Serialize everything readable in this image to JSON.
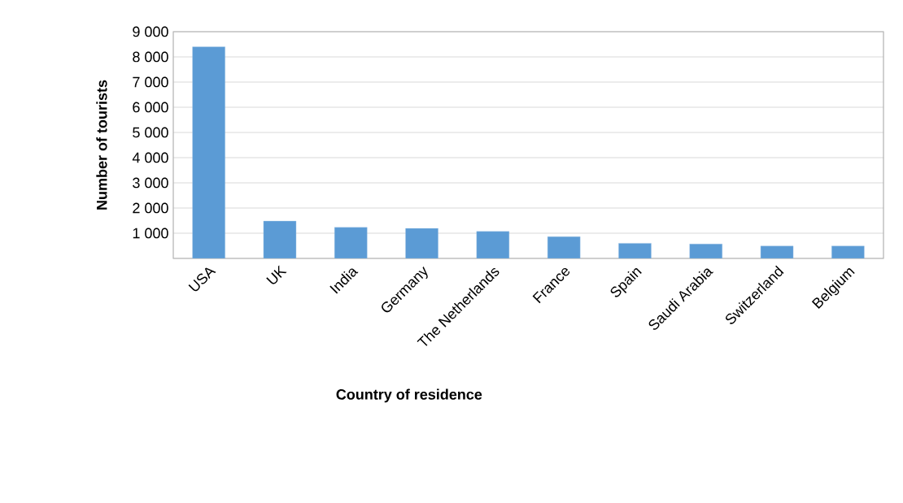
{
  "chart_data": {
    "type": "bar",
    "xlabel": "Country of residence",
    "ylabel": "Number of tourists",
    "categories": [
      "USA",
      "UK",
      "India",
      "Germany",
      "The Netherlands",
      "France",
      "Spain",
      "Saudi Arabia",
      "Switzerland",
      "Belgium"
    ],
    "values": [
      8400,
      1480,
      1230,
      1190,
      1070,
      860,
      600,
      570,
      490,
      490
    ],
    "color": "#5b9bd5",
    "ylim": [
      0,
      9000
    ],
    "yticks": [
      {
        "value": 0,
        "label": null
      },
      {
        "value": 1000,
        "label": "1 000"
      },
      {
        "value": 2000,
        "label": "2 000"
      },
      {
        "value": 3000,
        "label": "3 000"
      },
      {
        "value": 4000,
        "label": "4 000"
      },
      {
        "value": 5000,
        "label": "5 000"
      },
      {
        "value": 6000,
        "label": "6 000"
      },
      {
        "value": 7000,
        "label": "7 000"
      },
      {
        "value": 8000,
        "label": "8 000"
      },
      {
        "value": 9000,
        "label": "9 000"
      }
    ],
    "grid": "y"
  }
}
